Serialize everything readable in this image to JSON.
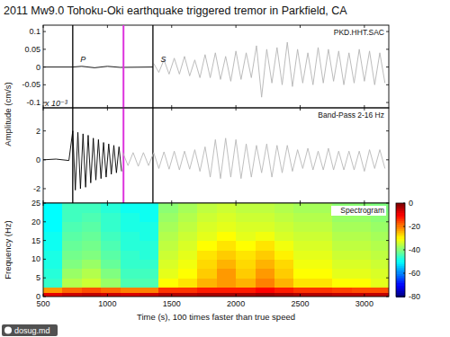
{
  "watermark": "dosug.md",
  "chart_data": [
    {
      "type": "line",
      "title": "2011 Mw9.0 Tohoku-Oki earthquake triggered tremor in Parkfield, CA",
      "subtitle": "PKD.HHT.SAC",
      "ylabel": "Amplitude (cm/s)",
      "xlim": [
        500,
        3190
      ],
      "xticks": [
        500,
        1000,
        1500,
        2000,
        2500,
        3000
      ],
      "ylim": [
        -0.115,
        0.118
      ],
      "yticks": [
        -0.1,
        -0.05,
        0,
        0.05,
        0.1
      ],
      "tick_labels": "y",
      "grid": false,
      "vlines": [
        {
          "x": 730,
          "color": "#000000"
        },
        {
          "x": 1125,
          "color": "#dd33dd"
        },
        {
          "x": 1354,
          "color": "#000000"
        }
      ],
      "annotations": [
        {
          "text": "P",
          "x": 775,
          "y": 0.008
        },
        {
          "text": "S",
          "x": 1400,
          "y": 0.008
        }
      ],
      "series": [
        {
          "color": "#000000",
          "x": [
            500,
            730,
            800,
            900,
            1000,
            1100,
            1354
          ],
          "values": [
            0,
            0,
            0.002,
            -0.002,
            0.002,
            -0.001,
            0
          ]
        },
        {
          "color": "#b4b4b4",
          "x": [
            1360,
            1400,
            1440,
            1480,
            1520,
            1560,
            1600,
            1640,
            1680,
            1720,
            1760,
            1800,
            1840,
            1880,
            1920,
            1960,
            2000,
            2040,
            2080,
            2120,
            2160,
            2200,
            2240,
            2280,
            2320,
            2360,
            2400,
            2440,
            2480,
            2520,
            2560,
            2600,
            2640,
            2680,
            2720,
            2760,
            2800,
            2840,
            2880,
            2920,
            2960,
            3000,
            3040,
            3080,
            3120,
            3160
          ],
          "values": [
            0.01,
            -0.015,
            0.02,
            -0.02,
            0.025,
            -0.02,
            0.03,
            -0.025,
            0.02,
            -0.03,
            0.035,
            -0.03,
            0.04,
            -0.035,
            0.03,
            -0.04,
            0.045,
            -0.035,
            0.04,
            -0.03,
            0.06,
            -0.085,
            0.05,
            -0.045,
            0.055,
            -0.05,
            0.07,
            -0.055,
            0.05,
            -0.045,
            0.04,
            -0.05,
            0.055,
            -0.045,
            0.05,
            -0.04,
            0.045,
            -0.05,
            0.04,
            -0.045,
            0.05,
            -0.04,
            0.045,
            -0.05,
            0.04,
            -0.045
          ]
        }
      ]
    },
    {
      "type": "line",
      "subtitle": "Band-Pass 2-16 Hz",
      "xlim": [
        500,
        3190
      ],
      "xticks": [
        500,
        1000,
        1500,
        2000,
        2500,
        3000
      ],
      "ylim": [
        -3,
        3.6
      ],
      "yticks": [
        -2,
        0,
        2
      ],
      "tick_labels": "y",
      "grid": false,
      "annotations": [
        {
          "text": "x 10⁻³",
          "x": 500,
          "y": 3.6
        }
      ],
      "series": [
        {
          "color": "#000000",
          "x": [
            500,
            600,
            700,
            730,
            750,
            770,
            790,
            810,
            830,
            850,
            870,
            890,
            910,
            930,
            950,
            970,
            990,
            1010,
            1030,
            1050,
            1070,
            1090,
            1110
          ],
          "values": [
            0,
            0.05,
            -0.05,
            2.0,
            -2.1,
            1.9,
            -2.0,
            1.8,
            -1.9,
            1.7,
            -1.6,
            1.5,
            -1.4,
            1.4,
            -1.3,
            1.2,
            -1.2,
            1.1,
            -1.0,
            1.0,
            -0.9,
            0.9,
            -0.8
          ]
        },
        {
          "color": "#b8b8b8",
          "x": [
            1120,
            1160,
            1200,
            1240,
            1280,
            1320,
            1360,
            1400,
            1440,
            1480,
            1520,
            1560,
            1600,
            1640,
            1680,
            1720,
            1760,
            1800,
            1840,
            1880,
            1920,
            1960,
            2000,
            2040,
            2080,
            2120,
            2160,
            2200,
            2240,
            2280,
            2320,
            2360,
            2400,
            2440,
            2480,
            2520,
            2560,
            2600,
            2640,
            2680,
            2720,
            2760,
            2800,
            2840,
            2880,
            2920,
            2960,
            3000,
            3040,
            3080,
            3120,
            3160
          ],
          "values": [
            0.5,
            -0.4,
            0.5,
            -0.45,
            0.5,
            -0.4,
            0.5,
            -0.6,
            0.55,
            -0.65,
            0.6,
            -0.7,
            0.6,
            -0.65,
            0.7,
            -0.8,
            0.9,
            -1.2,
            1.4,
            -1.3,
            1.5,
            -1.2,
            1.4,
            -1.3,
            1.1,
            -1.2,
            1.0,
            -0.9,
            1.1,
            -1.2,
            1.0,
            -0.9,
            1.0,
            -0.8,
            0.7,
            -0.6,
            0.8,
            -0.7,
            0.6,
            -0.7,
            0.8,
            -0.7,
            0.6,
            -0.7,
            0.6,
            -0.7,
            0.6,
            -0.8,
            0.7,
            -0.6,
            0.7,
            -0.6
          ]
        }
      ]
    },
    {
      "type": "heatmap",
      "subtitle": "Spectrogram",
      "ylabel": "Frequency (Hz)",
      "xlabel": "Time (s), 100 times faster than true speed",
      "xlim": [
        500,
        3190
      ],
      "xticks": [
        500,
        1000,
        1500,
        2000,
        2500,
        3000
      ],
      "ylim": [
        0,
        25
      ],
      "yticks": [
        0,
        5,
        10,
        15,
        20,
        25
      ],
      "tick_labels": true,
      "grid": false,
      "x_bins": [
        500,
        650,
        800,
        950,
        1100,
        1250,
        1400,
        1550,
        1700,
        1850,
        2000,
        2150,
        2300,
        2450,
        2600,
        2750,
        2900,
        3050,
        3200
      ],
      "y_bins": [
        0,
        1,
        2.5,
        5,
        7.5,
        10,
        12.5,
        15,
        17.5,
        20,
        22.5,
        25
      ],
      "cells": [
        [
          -8,
          -6,
          -5,
          -6,
          -7,
          -6,
          -4,
          -4,
          -3,
          -3,
          -3,
          -2,
          -3,
          -4,
          -4,
          -5,
          -5,
          -5
        ],
        [
          -22,
          -18,
          -16,
          -18,
          -20,
          -20,
          -14,
          -14,
          -12,
          -12,
          -12,
          -10,
          -12,
          -14,
          -14,
          -15,
          -16,
          -16
        ],
        [
          -46,
          -36,
          -34,
          -38,
          -44,
          -44,
          -30,
          -28,
          -24,
          -22,
          -24,
          -20,
          -24,
          -28,
          -28,
          -30,
          -30,
          -32
        ],
        [
          -47,
          -38,
          -36,
          -40,
          -45,
          -45,
          -32,
          -30,
          -26,
          -22,
          -26,
          -22,
          -26,
          -30,
          -30,
          -32,
          -32,
          -33
        ],
        [
          -48,
          -40,
          -38,
          -42,
          -46,
          -46,
          -33,
          -31,
          -27,
          -24,
          -27,
          -24,
          -27,
          -31,
          -31,
          -33,
          -33,
          -34
        ],
        [
          -48,
          -41,
          -40,
          -43,
          -46,
          -47,
          -34,
          -32,
          -28,
          -26,
          -28,
          -26,
          -29,
          -32,
          -32,
          -34,
          -34,
          -35
        ],
        [
          -49,
          -42,
          -41,
          -44,
          -47,
          -47,
          -35,
          -33,
          -30,
          -28,
          -30,
          -28,
          -31,
          -33,
          -33,
          -35,
          -35,
          -36
        ],
        [
          -49,
          -43,
          -42,
          -45,
          -47,
          -48,
          -36,
          -34,
          -32,
          -30,
          -32,
          -31,
          -33,
          -34,
          -34,
          -36,
          -36,
          -37
        ],
        [
          -50,
          -44,
          -43,
          -46,
          -48,
          -48,
          -37,
          -35,
          -33,
          -32,
          -33,
          -33,
          -34,
          -35,
          -35,
          -37,
          -37,
          -38
        ],
        [
          -50,
          -45,
          -44,
          -46,
          -48,
          -49,
          -38,
          -36,
          -34,
          -33,
          -34,
          -34,
          -35,
          -36,
          -36,
          -38,
          -38,
          -39
        ],
        [
          -50,
          -45,
          -45,
          -47,
          -49,
          -49,
          -39,
          -37,
          -35,
          -34,
          -35,
          -35,
          -36,
          -37,
          -37,
          -39,
          -39,
          -40
        ]
      ],
      "colorbar_lim": [
        -80,
        0
      ],
      "colorbar_ticks": [
        -80,
        -60,
        -40,
        -20,
        0
      ]
    }
  ]
}
